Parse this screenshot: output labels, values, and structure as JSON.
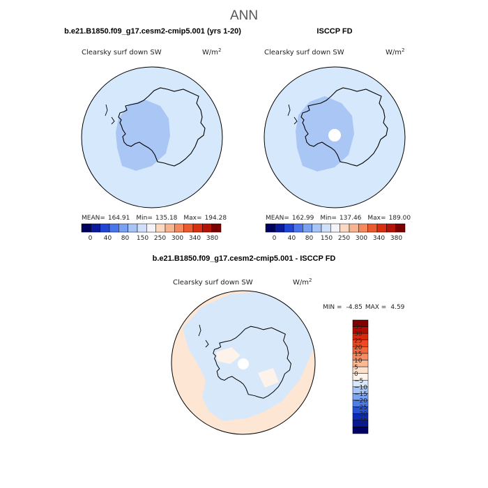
{
  "main_title": "ANN",
  "chart_data": [
    {
      "type": "heatmap",
      "projection": "south-polar-stereographic",
      "title": "b.e21.B1850.f09_g17.cesm2-cmip5.001 (yrs 1-20)",
      "variable": "Clearsky surf down SW",
      "units": "W/m",
      "units_sup": "2",
      "stats": {
        "mean_label": "MEAN=",
        "mean": "164.91",
        "min_label": "Min=",
        "min": "135.18",
        "max_label": "Max=",
        "max": "194.28"
      },
      "colorbar": {
        "orientation": "horizontal",
        "levels": [
          "0",
          "40",
          "80",
          "150",
          "250",
          "300",
          "340",
          "380"
        ],
        "colors": [
          "#00005f",
          "#0a1a9a",
          "#1f45d6",
          "#4a74ec",
          "#7aa0f2",
          "#a8c4f6",
          "#cfe1fa",
          "#f4f4f8",
          "#fbd8c2",
          "#f8b48f",
          "#f48a5e",
          "#ec5a2f",
          "#d8300f",
          "#b51208",
          "#7a0000"
        ]
      },
      "regions": [
        {
          "name": "ocean",
          "range": "150-250",
          "color": "#d6e8fb"
        },
        {
          "name": "interior",
          "range": "80-150",
          "color": "#a9c6f5"
        }
      ]
    },
    {
      "type": "heatmap",
      "projection": "south-polar-stereographic",
      "title": "ISCCP FD",
      "variable": "Clearsky surf down SW",
      "units": "W/m",
      "units_sup": "2",
      "stats": {
        "mean_label": "MEAN=",
        "mean": "162.99",
        "min_label": "Min=",
        "min": "137.46",
        "max_label": "Max=",
        "max": "189.00"
      },
      "colorbar": {
        "orientation": "horizontal",
        "levels": [
          "0",
          "40",
          "80",
          "150",
          "250",
          "300",
          "340",
          "380"
        ],
        "colors": [
          "#00005f",
          "#0a1a9a",
          "#1f45d6",
          "#4a74ec",
          "#7aa0f2",
          "#a8c4f6",
          "#cfe1fa",
          "#f4f4f8",
          "#fbd8c2",
          "#f8b48f",
          "#f48a5e",
          "#ec5a2f",
          "#d8300f",
          "#b51208",
          "#7a0000"
        ]
      },
      "regions": [
        {
          "name": "ocean",
          "range": "150-250",
          "color": "#d6e8fb"
        },
        {
          "name": "interior",
          "range": "80-150",
          "color": "#a9c6f5"
        },
        {
          "name": "missing",
          "range": "",
          "color": "#ffffff"
        }
      ]
    },
    {
      "type": "heatmap",
      "projection": "south-polar-stereographic",
      "title": "b.e21.B1850.f09_g17.cesm2-cmip5.001 - ISCCP FD",
      "variable": "Clearsky surf down SW",
      "units": "W/m",
      "units_sup": "2",
      "stats": {
        "min_label": "MIN =",
        "min": "-4.85",
        "max_label": "MAX =",
        "max": "4.59"
      },
      "colorbar": {
        "orientation": "vertical",
        "levels": [
          "35",
          "30",
          "25",
          "20",
          "15",
          "10",
          "5",
          "0",
          "−5",
          "−10",
          "−15",
          "−20",
          "−25",
          "−30",
          "−35"
        ],
        "colors": [
          "#7f0000",
          "#b00e05",
          "#d92a0c",
          "#ee4a22",
          "#f4693c",
          "#f88c62",
          "#fbb895",
          "#fde1cc",
          "#fdf3ea",
          "#d8e8fb",
          "#a8c6f5",
          "#7da4f0",
          "#4f7ee8",
          "#2652d6",
          "#0c2bb0",
          "#081995",
          "#000066"
        ]
      },
      "regions": [
        {
          "name": "ocean",
          "range": "0-5",
          "color": "#fde6d3"
        },
        {
          "name": "coast",
          "range": "-5-0",
          "color": "#d8e8fb"
        },
        {
          "name": "missing",
          "range": "",
          "color": "#ffffff"
        }
      ]
    }
  ]
}
